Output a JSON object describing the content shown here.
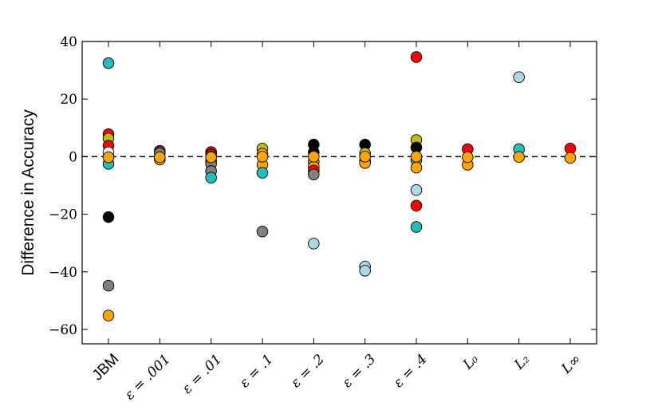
{
  "chart_data": {
    "type": "scatter",
    "title": "",
    "xlabel": "",
    "ylabel": "Difference in Accuracy",
    "ylim": [
      -65,
      40
    ],
    "yticks": [
      40,
      20,
      0,
      -20,
      -40,
      -60
    ],
    "ytick_labels": [
      "40",
      "20",
      "0",
      "−20",
      "−40",
      "−60"
    ],
    "categories": [
      "JBM",
      "ε = .001",
      "ε = .01",
      "ε = .1",
      "ε = .2",
      "ε = .3",
      "ε = .4",
      "L₀",
      "L₂",
      "L∞"
    ],
    "reference_line": 0,
    "grid": false,
    "legend": "none",
    "colors": {
      "teal": "#1fbfbf",
      "red": "#ff0000",
      "olive": "#bfbf00",
      "black": "#000000",
      "gray": "#808080",
      "orange": "#ffa500",
      "light_blue": "#add8e6",
      "white": "#ffffff",
      "maroon": "#8b1a1a"
    },
    "points": [
      {
        "cat": 0,
        "y": 32.5,
        "color": "teal"
      },
      {
        "cat": 0,
        "y": 7.8,
        "color": "red"
      },
      {
        "cat": 0,
        "y": 6.3,
        "color": "olive"
      },
      {
        "cat": 0,
        "y": 3.8,
        "color": "red"
      },
      {
        "cat": 0,
        "y": 1.5,
        "color": "white"
      },
      {
        "cat": 0,
        "y": -2.5,
        "color": "teal"
      },
      {
        "cat": 0,
        "y": -0.2,
        "color": "orange"
      },
      {
        "cat": 0,
        "y": -21.0,
        "color": "black"
      },
      {
        "cat": 0,
        "y": -44.8,
        "color": "gray"
      },
      {
        "cat": 0,
        "y": -55.2,
        "color": "orange"
      },
      {
        "cat": 1,
        "y": 2.0,
        "color": "maroon"
      },
      {
        "cat": 1,
        "y": 1.2,
        "color": "gray"
      },
      {
        "cat": 1,
        "y": -1.0,
        "color": "orange"
      },
      {
        "cat": 1,
        "y": -0.2,
        "color": "orange"
      },
      {
        "cat": 2,
        "y": 1.6,
        "color": "red"
      },
      {
        "cat": 2,
        "y": 0.8,
        "color": "maroon"
      },
      {
        "cat": 2,
        "y": -1.5,
        "color": "orange"
      },
      {
        "cat": 2,
        "y": -2.5,
        "color": "gray"
      },
      {
        "cat": 2,
        "y": -5.0,
        "color": "gray"
      },
      {
        "cat": 2,
        "y": -7.3,
        "color": "teal"
      },
      {
        "cat": 2,
        "y": -0.2,
        "color": "orange"
      },
      {
        "cat": 3,
        "y": 2.8,
        "color": "olive"
      },
      {
        "cat": 3,
        "y": 1.0,
        "color": "orange"
      },
      {
        "cat": 3,
        "y": -2.8,
        "color": "orange"
      },
      {
        "cat": 3,
        "y": -5.6,
        "color": "teal"
      },
      {
        "cat": 3,
        "y": -26.0,
        "color": "gray"
      },
      {
        "cat": 3,
        "y": 0.0,
        "color": "orange"
      },
      {
        "cat": 4,
        "y": 4.2,
        "color": "black"
      },
      {
        "cat": 4,
        "y": 1.5,
        "color": "black"
      },
      {
        "cat": 4,
        "y": -1.8,
        "color": "orange"
      },
      {
        "cat": 4,
        "y": -3.5,
        "color": "orange"
      },
      {
        "cat": 4,
        "y": -4.8,
        "color": "red"
      },
      {
        "cat": 4,
        "y": -6.2,
        "color": "gray"
      },
      {
        "cat": 4,
        "y": -30.2,
        "color": "light_blue"
      },
      {
        "cat": 4,
        "y": 0.0,
        "color": "orange"
      },
      {
        "cat": 5,
        "y": 4.2,
        "color": "black"
      },
      {
        "cat": 5,
        "y": 1.2,
        "color": "olive"
      },
      {
        "cat": 5,
        "y": -1.5,
        "color": "teal"
      },
      {
        "cat": 5,
        "y": -2.2,
        "color": "orange"
      },
      {
        "cat": 5,
        "y": -38.2,
        "color": "light_blue"
      },
      {
        "cat": 5,
        "y": -39.6,
        "color": "light_blue"
      },
      {
        "cat": 5,
        "y": 0.0,
        "color": "orange"
      },
      {
        "cat": 6,
        "y": 34.6,
        "color": "red"
      },
      {
        "cat": 6,
        "y": 5.8,
        "color": "olive"
      },
      {
        "cat": 6,
        "y": 3.2,
        "color": "black"
      },
      {
        "cat": 6,
        "y": -1.2,
        "color": "teal"
      },
      {
        "cat": 6,
        "y": -3.8,
        "color": "orange"
      },
      {
        "cat": 6,
        "y": -11.6,
        "color": "light_blue"
      },
      {
        "cat": 6,
        "y": -17.0,
        "color": "red"
      },
      {
        "cat": 6,
        "y": -24.4,
        "color": "teal"
      },
      {
        "cat": 6,
        "y": 0.0,
        "color": "orange"
      },
      {
        "cat": 7,
        "y": 2.6,
        "color": "red"
      },
      {
        "cat": 7,
        "y": -2.8,
        "color": "orange"
      },
      {
        "cat": 7,
        "y": -0.2,
        "color": "orange"
      },
      {
        "cat": 8,
        "y": 27.6,
        "color": "light_blue"
      },
      {
        "cat": 8,
        "y": 2.6,
        "color": "teal"
      },
      {
        "cat": 8,
        "y": -0.1,
        "color": "orange"
      },
      {
        "cat": 9,
        "y": 2.8,
        "color": "red"
      },
      {
        "cat": 9,
        "y": -0.4,
        "color": "orange"
      }
    ]
  }
}
